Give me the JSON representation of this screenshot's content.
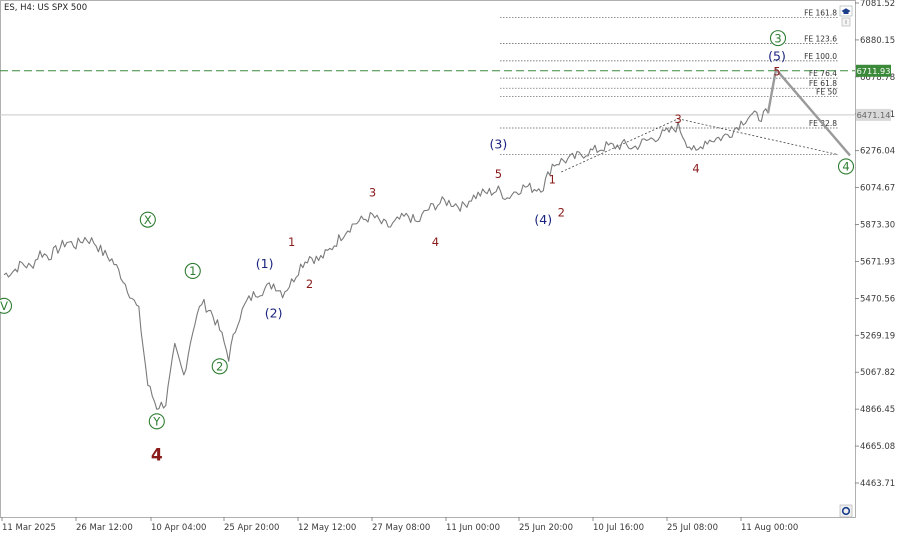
{
  "header": {
    "symbol_text": "ES, H4:  US SPX 500"
  },
  "colors": {
    "price_line": "#7a7a7a",
    "wave_red": "#8b1a1a",
    "wave_blue": "#1a237e",
    "wave_green": "#2e7d32",
    "green_level": "#3a8a3a",
    "current_price_bg": "#d9d9d9"
  },
  "icons": {
    "top_right": "hat-icon",
    "bottom_right": "circle-icon"
  },
  "chart_data": {
    "type": "line",
    "y_ticks": [
      "7081.52",
      "6880.15",
      "6678.78",
      "6477.41",
      "6276.04",
      "6074.67",
      "5873.30",
      "5671.93",
      "5470.56",
      "5269.19",
      "5067.82",
      "4866.45",
      "4665.08",
      "4463.71"
    ],
    "x_ticks": [
      "11 Mar 2025",
      "26 Mar 12:00",
      "10 Apr 04:00",
      "25 Apr 20:00",
      "12 May 12:00",
      "27 May 08:00",
      "11 Jun 00:00",
      "25 Jun 20:00",
      "10 Jul 16:00",
      "25 Jul 08:00",
      "11 Aug 00:00"
    ],
    "ylim": [
      4370,
      7120
    ],
    "series": [
      {
        "values": [
          5600,
          5620,
          5660,
          5640,
          5720,
          5700,
          5740,
          5780,
          5760,
          5800,
          5780,
          5720,
          5680,
          5600,
          5500,
          5400,
          5000,
          4880,
          4900,
          5200,
          5050,
          5300,
          5450,
          5400,
          5300,
          5150,
          5350,
          5450,
          5500,
          5520,
          5550,
          5500,
          5560,
          5650,
          5700,
          5680,
          5720,
          5780,
          5840,
          5880,
          5900,
          5920,
          5880,
          5860,
          5900,
          5920,
          5880,
          5950,
          5980,
          6000,
          5990,
          5970,
          6020,
          6040,
          6050,
          6060,
          6020,
          6060,
          6080,
          6070,
          6080,
          6200,
          6220,
          6230,
          6250,
          6270,
          6280,
          6300,
          6300,
          6310,
          6290,
          6320,
          6340,
          6360,
          6380,
          6410,
          6320,
          6260,
          6330,
          6340,
          6350,
          6380,
          6430,
          6470,
          6460,
          6480
        ]
      }
    ],
    "projection": [
      6480,
      6720,
      6250
    ],
    "fe_levels": [
      {
        "label": "FE 161.8",
        "value": 7002
      },
      {
        "label": "FE 123.6",
        "value": 6860
      },
      {
        "label": "FE 100.0",
        "value": 6766
      },
      {
        "label": "FE 76.4",
        "value": 6672
      },
      {
        "label": "FE 61.8",
        "value": 6617
      },
      {
        "label": "FE 50",
        "value": 6572
      },
      {
        "label": "FE 32.8",
        "value": 6400
      },
      {
        "label": "",
        "value": 6255
      }
    ],
    "green_level": {
      "value": 6711.93,
      "label": "6711.93"
    },
    "current_price": {
      "value": 6471.14,
      "label": "6471.14"
    },
    "wave_labels": [
      {
        "text": "X",
        "color": "green",
        "circled": true,
        "i": 16,
        "v": 5900
      },
      {
        "text": "Y",
        "color": "green",
        "circled": true,
        "i": 17,
        "v": 4800
      },
      {
        "text": "4",
        "color": "red",
        "bold": true,
        "i": 17,
        "v": 4620
      },
      {
        "text": "1",
        "color": "green",
        "circled": true,
        "i": 21,
        "v": 5620
      },
      {
        "text": "2",
        "color": "green",
        "circled": true,
        "i": 24,
        "v": 5100
      },
      {
        "text": "(1)",
        "color": "blue",
        "i": 29,
        "v": 5660
      },
      {
        "text": "(2)",
        "color": "blue",
        "i": 30,
        "v": 5390
      },
      {
        "text": "1",
        "color": "red",
        "i": 32,
        "v": 5780
      },
      {
        "text": "2",
        "color": "red",
        "i": 34,
        "v": 5550
      },
      {
        "text": "3",
        "color": "red",
        "i": 41,
        "v": 6050
      },
      {
        "text": "4",
        "color": "red",
        "i": 48,
        "v": 5780
      },
      {
        "text": "5",
        "color": "red",
        "i": 55,
        "v": 6150
      },
      {
        "text": "(3)",
        "color": "blue",
        "i": 55,
        "v": 6310
      },
      {
        "text": "1",
        "color": "red",
        "i": 61,
        "v": 6120
      },
      {
        "text": "(4)",
        "color": "blue",
        "i": 60,
        "v": 5900
      },
      {
        "text": "2",
        "color": "red",
        "i": 62,
        "v": 5940
      },
      {
        "text": "3",
        "color": "red",
        "i": 75,
        "v": 6450
      },
      {
        "text": "4",
        "color": "red",
        "i": 77,
        "v": 6180
      },
      {
        "text": "(5)",
        "color": "blue",
        "i": 85,
        "v": 6790
      },
      {
        "text": "5",
        "color": "red",
        "i": 85,
        "v": 6710
      },
      {
        "text": "3",
        "color": "green",
        "circled": true,
        "i": 86,
        "v": 6890
      },
      {
        "text": "4",
        "color": "green",
        "circled": true,
        "i": 93,
        "v": 6190
      },
      {
        "text": "V",
        "color": "green",
        "circled": true,
        "i": 0,
        "v": 5430
      }
    ]
  }
}
